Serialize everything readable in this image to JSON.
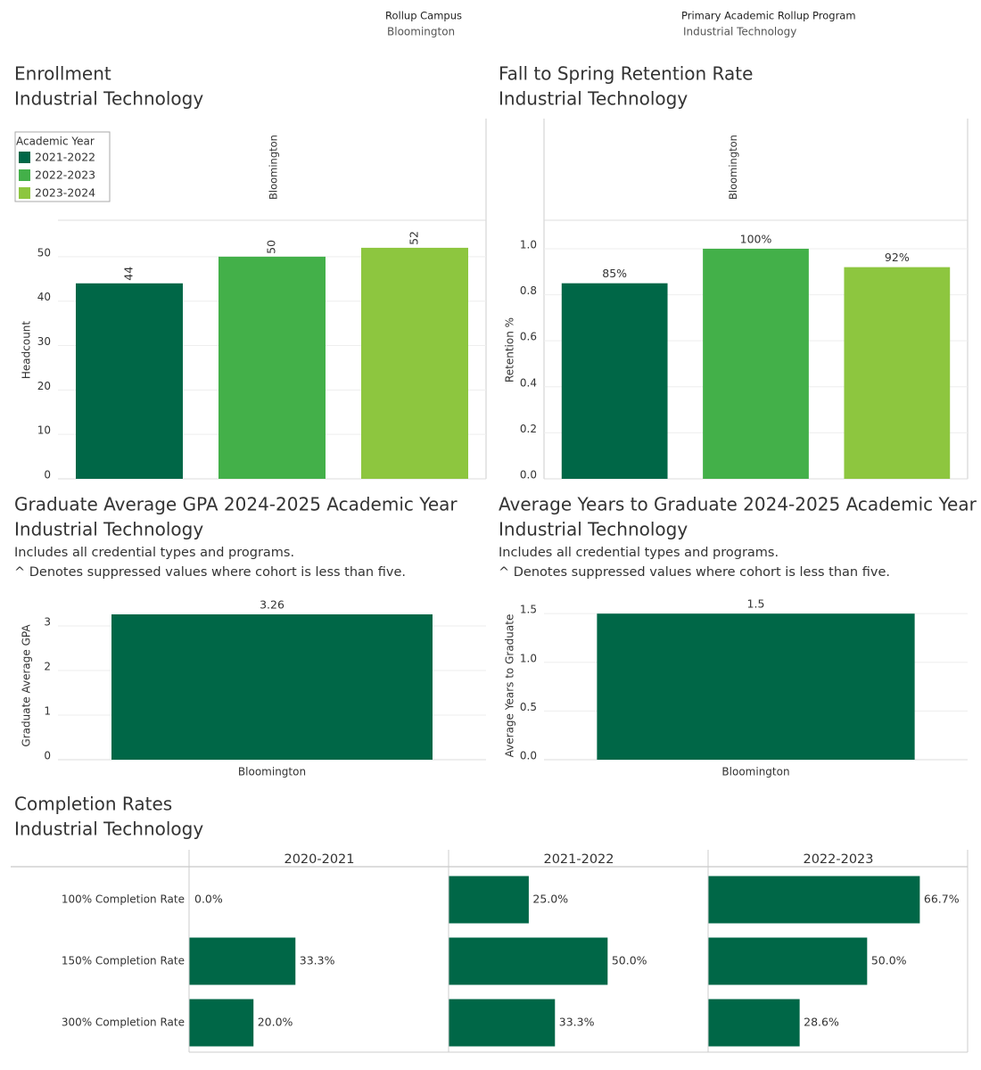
{
  "filters": [
    {
      "label": "Rollup Campus",
      "value": "Bloomington"
    },
    {
      "label": "Primary Academic Rollup Program",
      "value": "Industrial Technology"
    }
  ],
  "chart_data": [
    {
      "type": "bar",
      "title": "Enrollment",
      "subtitle": "Industrial Technology",
      "panel": "Bloomington",
      "legend_title": "Academic Year",
      "legend": "top-left",
      "categories": [
        "2021-2022",
        "2022-2023",
        "2023-2024"
      ],
      "values": [
        44,
        50,
        52
      ],
      "colors": [
        "#006747",
        "#43b049",
        "#8dc63f"
      ],
      "ylabel": "Headcount",
      "ylim": [
        0,
        58
      ],
      "yticks": [
        0,
        10,
        20,
        30,
        40,
        50
      ],
      "grid": true
    },
    {
      "type": "bar",
      "title": "Fall to Spring Retention Rate",
      "subtitle": "Industrial Technology",
      "panel": "Bloomington",
      "categories": [
        "2021-2022",
        "2022-2023",
        "2023-2024"
      ],
      "values": [
        0.85,
        1.0,
        0.92
      ],
      "value_labels": [
        "85%",
        "100%",
        "92%"
      ],
      "colors": [
        "#006747",
        "#43b049",
        "#8dc63f"
      ],
      "ylabel": "Retention %",
      "ylim": [
        0,
        1.12
      ],
      "yticks": [
        {
          "value": 0,
          "label": "0.0"
        },
        0.2,
        0.4,
        0.6,
        0.8,
        {
          "value": 1,
          "label": "1.0"
        }
      ],
      "grid": true
    },
    {
      "type": "bar",
      "title": "Graduate Average GPA 2024-2025 Academic Year",
      "subtitle": "Industrial Technology",
      "notes": [
        "Includes all credential types and programs.",
        "^ Denotes suppressed values where cohort is less than five."
      ],
      "categories": [
        "Bloomington"
      ],
      "values": [
        3.26
      ],
      "color": "#006747",
      "ylabel": "Graduate Average GPA",
      "ylim": [
        0,
        3.32
      ],
      "yticks": [
        0,
        1,
        2,
        3
      ],
      "grid": true
    },
    {
      "type": "bar",
      "title": "Average Years to Graduate 2024-2025 Academic Year",
      "subtitle": "Industrial Technology",
      "notes": [
        "Includes all credential types and programs.",
        "^ Denotes suppressed values where cohort is less than five."
      ],
      "categories": [
        "Bloomington"
      ],
      "values": [
        1.5
      ],
      "color": "#006747",
      "ylabel": "Average Years to Graduate",
      "ylim": [
        0,
        1.52
      ],
      "yticks": [
        {
          "value": 0,
          "label": "0.0"
        },
        0.5,
        {
          "value": 1,
          "label": "1.0"
        },
        1.5
      ],
      "grid": true
    },
    {
      "type": "barh",
      "title": "Completion Rates",
      "subtitle": "Industrial Technology",
      "categories": [
        "100% Completion Rate",
        "150% Completion Rate",
        "300% Completion Rate"
      ],
      "xlim": [
        0,
        82
      ],
      "series": [
        {
          "name": "2020-2021",
          "color": "#006747",
          "values": [
            0,
            33.3,
            20
          ],
          "value_labels": [
            "0.0%",
            "33.3%",
            "20.0%"
          ]
        },
        {
          "name": "2021-2022",
          "color": "#006747",
          "values": [
            25,
            50,
            33.3
          ],
          "value_labels": [
            "25.0%",
            "50.0%",
            "33.3%"
          ]
        },
        {
          "name": "2022-2023",
          "color": "#006747",
          "values": [
            66.7,
            50,
            28.6
          ],
          "value_labels": [
            "66.7%",
            "50.0%",
            "28.6%"
          ]
        }
      ]
    }
  ]
}
